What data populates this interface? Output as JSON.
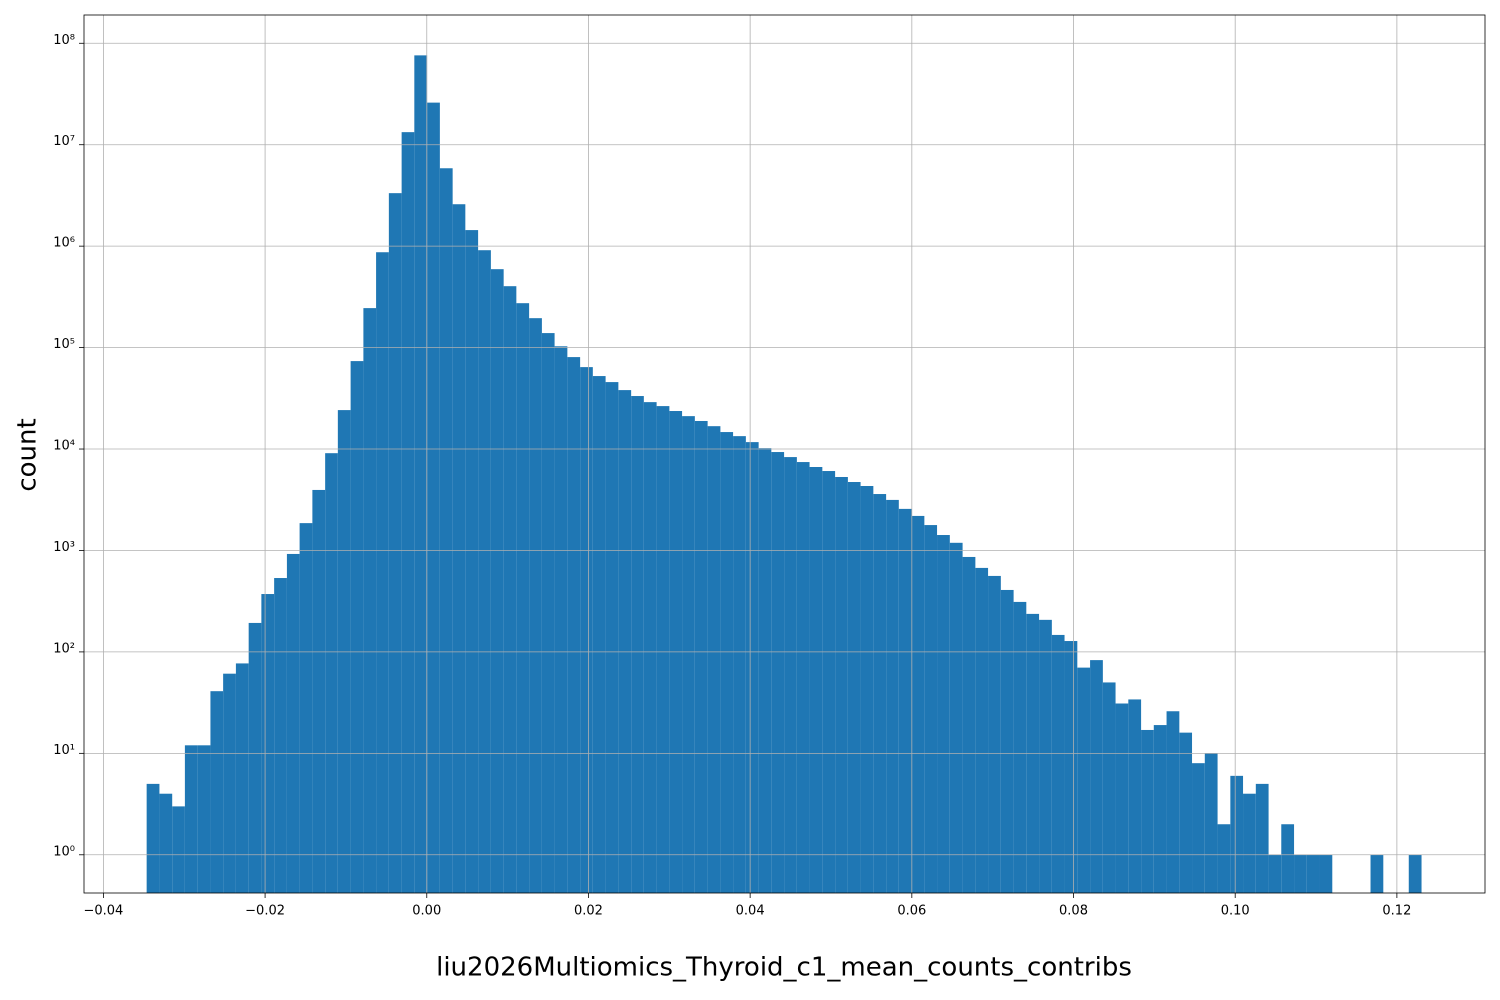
{
  "chart_data": {
    "type": "histogram",
    "xlabel": "liu2026Multiomics_Thyroid_c1_mean_counts_contribs",
    "ylabel": "count",
    "color": "#1f77b4",
    "grid": true,
    "yscale": "log",
    "bins": [
      -0.03465,
      -0.03307,
      -0.03149,
      -0.02992,
      -0.02834,
      -0.02676,
      -0.02519,
      -0.02361,
      -0.02203,
      -0.02046,
      -0.01888,
      -0.0173,
      -0.01573,
      -0.01415,
      -0.01257,
      -0.011,
      -0.00942,
      -0.00784,
      -0.00627,
      -0.00469,
      -0.00311,
      -0.00154,
      4e-05,
      0.00162,
      0.0032,
      0.00477,
      0.00635,
      0.00793,
      0.00951,
      0.01108,
      0.01266,
      0.01424,
      0.01581,
      0.01739,
      0.01897,
      0.02054,
      0.02212,
      0.0237,
      0.02528,
      0.02685,
      0.02843,
      0.03001,
      0.03158,
      0.03316,
      0.03474,
      0.03632,
      0.03789,
      0.03947,
      0.04105,
      0.04262,
      0.0442,
      0.04578,
      0.04735,
      0.04893,
      0.05051,
      0.05209,
      0.05366,
      0.05524,
      0.05682,
      0.05839,
      0.05997,
      0.06155,
      0.06312,
      0.0647,
      0.06628,
      0.06786,
      0.06943,
      0.07101,
      0.07259,
      0.07416,
      0.07574,
      0.07732,
      0.07889,
      0.08047,
      0.08205,
      0.08363,
      0.0852,
      0.08678,
      0.08836,
      0.08993,
      0.09151,
      0.09309,
      0.09466,
      0.09624,
      0.09782,
      0.0994,
      0.10097,
      0.10255,
      0.10413,
      0.1057,
      0.10728,
      0.10886,
      0.11043,
      0.11201,
      0.11359,
      0.11517,
      0.11674,
      0.11832,
      0.1199,
      0.12147,
      0.12305
    ],
    "values": [
      5,
      4,
      3,
      12,
      12,
      41,
      61,
      77,
      193,
      372,
      535,
      924,
      1860,
      3950,
      9100,
      24200,
      73600,
      245000,
      871000,
      3330000,
      13300000,
      76000000,
      26000000,
      5860000,
      2590000,
      1440000,
      912000,
      593000,
      403000,
      274000,
      195000,
      139000,
      103000,
      80600,
      64200,
      52400,
      45700,
      38100,
      33300,
      29000,
      26500,
      23700,
      21100,
      18900,
      16800,
      14700,
      13400,
      11700,
      10200,
      9340,
      8330,
      7440,
      6650,
      6070,
      5300,
      4730,
      4320,
      3600,
      3150,
      2570,
      2190,
      1780,
      1420,
      1190,
      863,
      673,
      561,
      408,
      311,
      237,
      207,
      147,
      128,
      70,
      83,
      50,
      31,
      34,
      17,
      19,
      26,
      16,
      8,
      10,
      2,
      6,
      4,
      5,
      1,
      2,
      1,
      1,
      1,
      0,
      0,
      0,
      1,
      0,
      0,
      1
    ],
    "xlim": [
      -0.0424,
      0.1309
    ],
    "ylim": [
      0.42,
      190000000
    ],
    "xticks": [
      {
        "value": -0.04,
        "label": "−0.04"
      },
      {
        "value": -0.02,
        "label": "−0.02"
      },
      {
        "value": 0,
        "label": "0.00"
      },
      0.02,
      0.04,
      0.06,
      0.08,
      {
        "value": 0.1,
        "label": "0.10"
      },
      0.12
    ],
    "yticks": [
      {
        "value": 1,
        "label": "10⁰"
      },
      {
        "value": 10,
        "label": "10¹"
      },
      {
        "value": 100,
        "label": "10²"
      },
      {
        "value": 1000,
        "label": "10³"
      },
      {
        "value": 10000,
        "label": "10⁴"
      },
      {
        "value": 100000,
        "label": "10⁵"
      },
      {
        "value": 1000000,
        "label": "10⁶"
      },
      {
        "value": 10000000,
        "label": "10⁷"
      },
      {
        "value": 100000000,
        "label": "10⁸"
      }
    ]
  }
}
